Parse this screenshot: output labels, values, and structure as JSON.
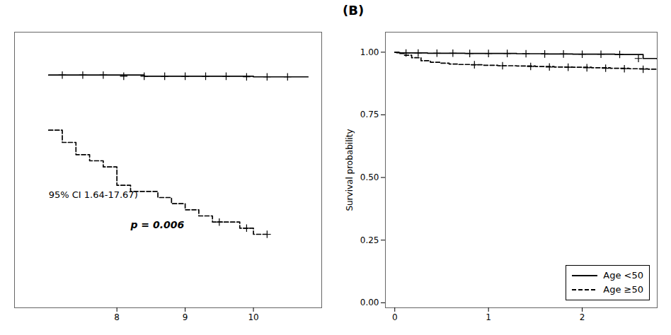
{
  "chart_data": [
    {
      "type": "line",
      "xlim": [
        6.5,
        11.0
      ],
      "ylim": [
        0.6,
        1.05
      ],
      "xticks": [
        8,
        9,
        10
      ],
      "tick_labels": "x",
      "grid": false,
      "series": [
        {
          "type": "step",
          "color": "#000000",
          "line_style": "solid",
          "x": [
            7.0,
            7.2,
            7.4,
            7.6,
            7.8,
            8.0,
            8.2,
            8.4,
            8.6,
            8.8,
            9.0,
            9.2,
            9.4,
            9.6,
            9.8,
            10.0,
            10.2,
            10.4,
            10.6,
            10.8
          ],
          "values": [
            0.98,
            0.98,
            0.98,
            0.98,
            0.98,
            0.98,
            0.98,
            0.978,
            0.978,
            0.978,
            0.978,
            0.978,
            0.978,
            0.978,
            0.978,
            0.977,
            0.977,
            0.977,
            0.977,
            0.977
          ]
        },
        {
          "type": "step",
          "color": "#000000",
          "line_style": "dashed",
          "x": [
            7.0,
            7.1,
            7.2,
            7.4,
            7.6,
            7.8,
            8.0,
            8.2,
            8.4,
            8.6,
            8.8,
            9.0,
            9.2,
            9.4,
            9.6,
            9.8,
            10.0,
            10.2
          ],
          "values": [
            0.89,
            0.89,
            0.87,
            0.85,
            0.84,
            0.83,
            0.8,
            0.79,
            0.79,
            0.78,
            0.77,
            0.76,
            0.75,
            0.74,
            0.74,
            0.73,
            0.72,
            0.72
          ]
        },
        {
          "type": "scatter",
          "color": "#000000",
          "marker": "plus",
          "x": [
            7.2,
            7.5,
            7.8,
            8.1,
            8.4,
            8.7,
            9.0,
            9.3,
            9.6,
            9.9,
            10.2,
            10.5
          ],
          "values": [
            0.98,
            0.98,
            0.98,
            0.978,
            0.978,
            0.978,
            0.978,
            0.978,
            0.978,
            0.977,
            0.977,
            0.977
          ]
        },
        {
          "type": "scatter",
          "color": "#000000",
          "marker": "plus",
          "x": [
            9.5,
            9.9,
            10.2
          ],
          "values": [
            0.74,
            0.73,
            0.72
          ]
        }
      ],
      "annotations": [
        {
          "text": "95% CI 1.64-17.67)",
          "x": 7.0,
          "y": 0.78
        },
        {
          "text": "p = 0.006",
          "x": 8.2,
          "y": 0.73
        }
      ]
    },
    {
      "type": "line",
      "title": "(B)",
      "ylabel": "Survival probability",
      "xlim": [
        -0.1,
        2.8
      ],
      "ylim": [
        -0.02,
        1.08
      ],
      "xticks": [
        0,
        1,
        2
      ],
      "yticks": [
        {
          "value": 0,
          "label": "0.00"
        },
        0.25,
        {
          "value": 0.5,
          "label": "0.50"
        },
        0.75,
        {
          "value": 1,
          "label": "1.00"
        }
      ],
      "grid": false,
      "legend": "lower right",
      "series": [
        {
          "name": "Age <50",
          "type": "step",
          "color": "#000000",
          "line_style": "solid",
          "x": [
            0,
            0.02,
            0.06,
            0.1,
            0.15,
            0.2,
            0.25,
            0.3,
            0.35,
            0.4,
            0.45,
            0.55,
            0.65,
            0.75,
            0.85,
            0.95,
            1.05,
            1.15,
            1.3,
            1.45,
            1.6,
            1.75,
            1.9,
            2.05,
            2.2,
            2.35,
            2.5,
            2.65,
            2.8
          ],
          "values": [
            1.0,
            0.998,
            0.997,
            0.997,
            0.997,
            0.997,
            0.997,
            0.997,
            0.996,
            0.996,
            0.996,
            0.996,
            0.996,
            0.995,
            0.995,
            0.995,
            0.995,
            0.995,
            0.994,
            0.994,
            0.993,
            0.993,
            0.992,
            0.992,
            0.992,
            0.991,
            0.991,
            0.975,
            0.973
          ]
        },
        {
          "name": "Age ≥50",
          "type": "step",
          "color": "#000000",
          "line_style": "dashed",
          "x": [
            0,
            0.05,
            0.1,
            0.18,
            0.28,
            0.38,
            0.48,
            0.58,
            0.68,
            0.8,
            0.95,
            1.1,
            1.3,
            1.5,
            1.7,
            1.9,
            2.1,
            2.3,
            2.5,
            2.7,
            2.8
          ],
          "values": [
            1.0,
            0.995,
            0.988,
            0.978,
            0.966,
            0.96,
            0.956,
            0.953,
            0.951,
            0.95,
            0.948,
            0.946,
            0.945,
            0.943,
            0.941,
            0.94,
            0.938,
            0.936,
            0.934,
            0.932,
            0.93
          ]
        },
        {
          "type": "scatter",
          "color": "#000000",
          "marker": "plus",
          "x": [
            0.12,
            0.25,
            0.45,
            0.62,
            0.8,
            1.0,
            1.2,
            1.4,
            1.6,
            1.8,
            2.0,
            2.2,
            2.4,
            2.6
          ],
          "values": [
            0.997,
            0.997,
            0.996,
            0.996,
            0.995,
            0.995,
            0.995,
            0.994,
            0.993,
            0.993,
            0.992,
            0.992,
            0.991,
            0.975
          ]
        },
        {
          "type": "scatter",
          "color": "#000000",
          "marker": "plus",
          "x": [
            0.85,
            1.15,
            1.45,
            1.65,
            1.85,
            2.05,
            2.25,
            2.45,
            2.65
          ],
          "values": [
            0.95,
            0.946,
            0.943,
            0.941,
            0.94,
            0.938,
            0.936,
            0.934,
            0.932
          ]
        }
      ]
    }
  ]
}
